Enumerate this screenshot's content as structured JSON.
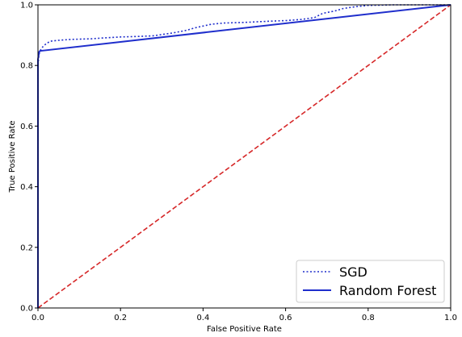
{
  "chart_data": {
    "type": "line",
    "xlabel": "False Positive Rate",
    "ylabel": "True Positive Rate",
    "xlim": [
      0.0,
      1.0
    ],
    "ylim": [
      0.0,
      1.0
    ],
    "xticks": [
      "0.0",
      "0.2",
      "0.4",
      "0.6",
      "0.8",
      "1.0"
    ],
    "yticks": [
      "0.0",
      "0.2",
      "0.4",
      "0.6",
      "0.8",
      "1.0"
    ],
    "grid": false,
    "legend_position": "lower-right",
    "series": [
      {
        "name": "SGD",
        "color": "#1f2ecc",
        "style": "dotted",
        "x": [
          0.0,
          0.0,
          0.002,
          0.004,
          0.006,
          0.008,
          0.012,
          0.02,
          0.03,
          0.05,
          0.08,
          0.13,
          0.16,
          0.2,
          0.25,
          0.28,
          0.3,
          0.33,
          0.36,
          0.38,
          0.4,
          0.42,
          0.45,
          0.5,
          0.56,
          0.6,
          0.64,
          0.67,
          0.69,
          0.72,
          0.74,
          0.77,
          0.8,
          0.86,
          0.9,
          1.0
        ],
        "y": [
          0.0,
          0.8,
          0.83,
          0.845,
          0.85,
          0.855,
          0.862,
          0.872,
          0.88,
          0.883,
          0.886,
          0.888,
          0.891,
          0.894,
          0.896,
          0.898,
          0.902,
          0.908,
          0.916,
          0.924,
          0.93,
          0.936,
          0.94,
          0.942,
          0.946,
          0.948,
          0.952,
          0.958,
          0.972,
          0.98,
          0.988,
          0.994,
          0.998,
          1.0,
          1.0,
          1.0
        ]
      },
      {
        "name": "Random Forest",
        "color": "#1f2ecc",
        "style": "solid",
        "x": [
          0.0,
          0.0,
          0.003,
          0.005,
          1.0
        ],
        "y": [
          0.0,
          0.82,
          0.845,
          0.848,
          1.0
        ]
      },
      {
        "name": "",
        "color": "#d62728",
        "style": "dashed",
        "x": [
          0.0,
          1.0
        ],
        "y": [
          0.0,
          1.0
        ]
      }
    ]
  }
}
